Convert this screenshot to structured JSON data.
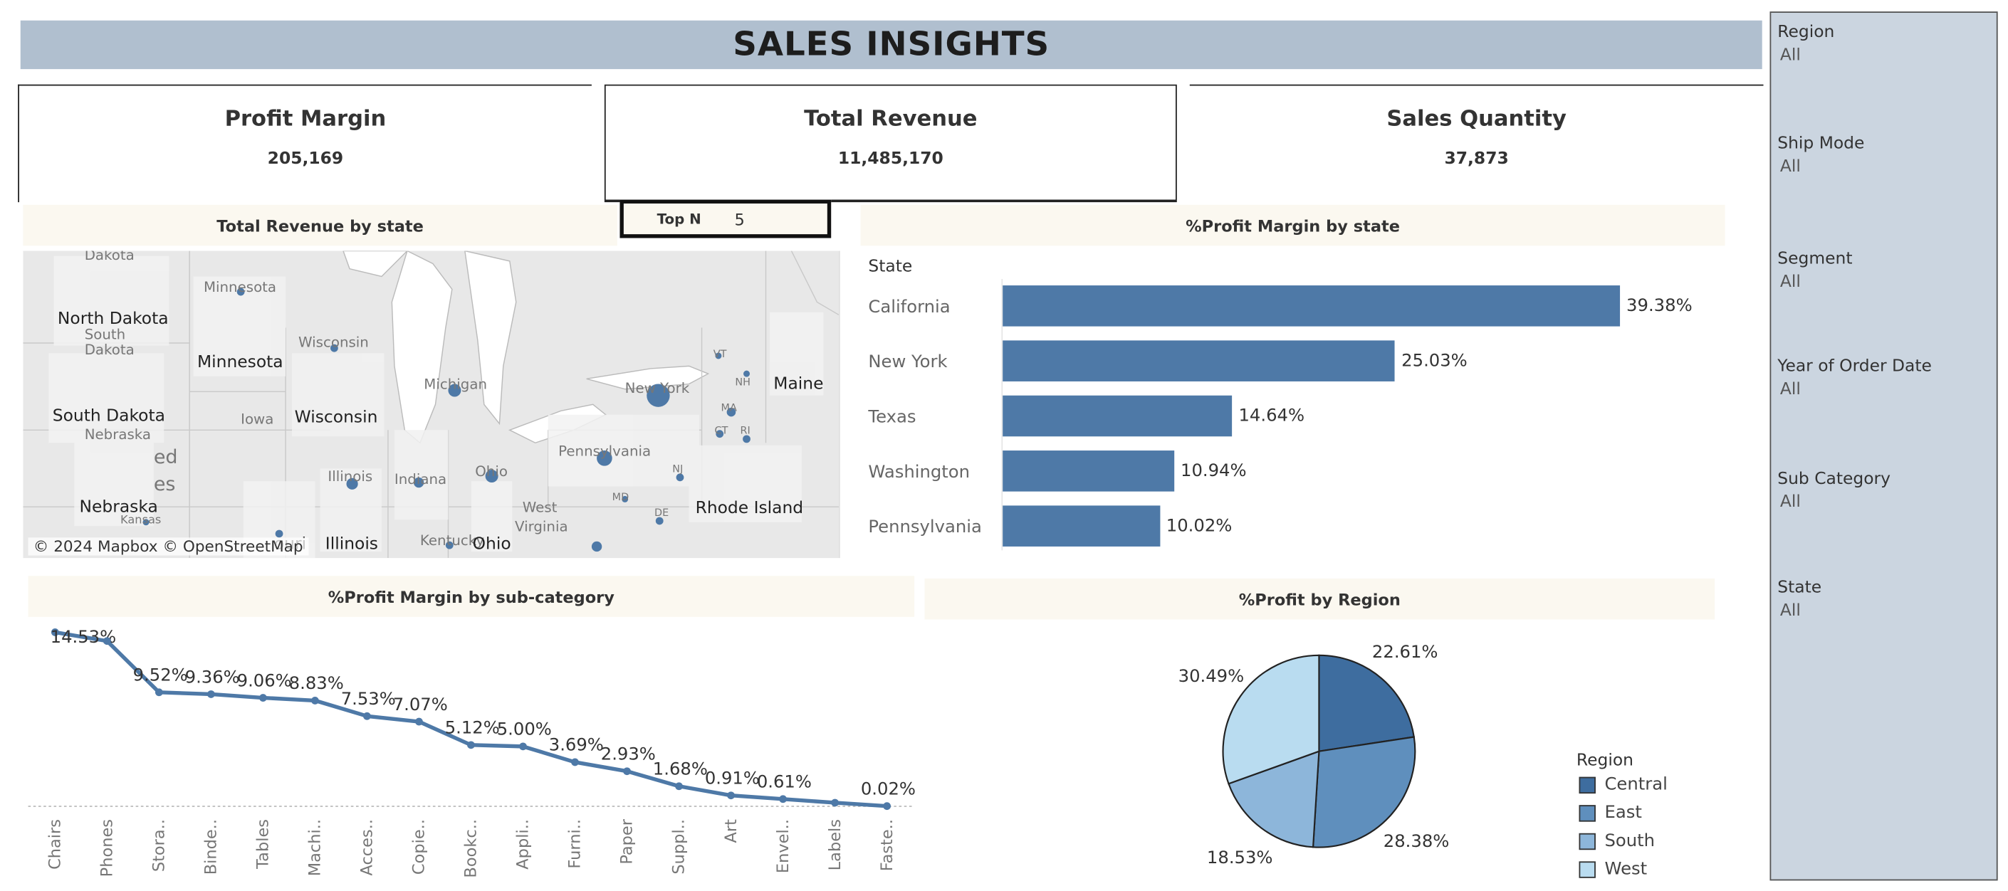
{
  "header": {
    "title": "SALES INSIGHTS"
  },
  "kpis": [
    {
      "label": "Profit Margin",
      "value": "205,169"
    },
    {
      "label": "Total Revenue",
      "value": "11,485,170"
    },
    {
      "label": "Sales Quantity",
      "value": "37,873"
    }
  ],
  "map_panel": {
    "title": "Total Revenue by state",
    "topn_label": "Top N",
    "topn_value": "5",
    "credit": "© 2024 Mapbox © OpenStreetMap",
    "labels": [
      "North Dakota",
      "Minnesota",
      "South Dakota",
      "Wisconsin",
      "Maine",
      "Rhode Island",
      "Nebraska",
      "Illinois",
      "Ohio"
    ],
    "faint_labels": [
      "Dakota",
      "Minnesota",
      "South",
      "Dakota",
      "Wisconsin",
      "Michigan",
      "New York",
      "Iowa",
      "Nebraska",
      "Pennsylvania",
      "Ohio",
      "Indiana",
      "Illinois",
      "West",
      "Virginia",
      "Kentucky",
      "ouri",
      "ed",
      "es",
      "Kansas",
      "VT",
      "NH",
      "MA",
      "CT",
      "RI",
      "MD",
      "DE",
      "NJ"
    ]
  },
  "bar_panel": {
    "title": "%Profit Margin by state",
    "header": "State"
  },
  "line_panel": {
    "title": "%Profit Margin by sub-category"
  },
  "pie_panel": {
    "title": "%Profit by Region",
    "legend_title": "Region"
  },
  "filters": [
    {
      "label": "Region",
      "value": "All"
    },
    {
      "label": "Ship Mode",
      "value": "All"
    },
    {
      "label": "Segment",
      "value": "All"
    },
    {
      "label": "Year of Order Date",
      "value": "All"
    },
    {
      "label": "Sub Category",
      "value": "All"
    },
    {
      "label": "State",
      "value": "All"
    }
  ],
  "chart_data": [
    {
      "type": "bar",
      "orientation": "horizontal",
      "categories": [
        "California",
        "New York",
        "Texas",
        "Washington",
        "Pennsylvania"
      ],
      "values": [
        39.38,
        25.03,
        14.64,
        10.94,
        10.02
      ],
      "value_labels": [
        "39.38%",
        "25.03%",
        "14.64%",
        "10.94%",
        "10.02%"
      ],
      "title": "%Profit Margin by state",
      "color": "#4e79a7"
    },
    {
      "type": "line",
      "categories": [
        "Chairs",
        "Phones",
        "Stora..",
        "Binde..",
        "Tables",
        "Machi..",
        "Acces..",
        "Copie..",
        "Bookc..",
        "Appli..",
        "Furni..",
        "Paper",
        "Suppl..",
        "Art",
        "Envel..",
        "Labels",
        "Faste.."
      ],
      "values": [
        14.53,
        13.8,
        9.52,
        9.36,
        9.06,
        8.83,
        7.53,
        7.07,
        5.12,
        5.0,
        3.69,
        2.93,
        1.68,
        0.91,
        0.61,
        0.3,
        0.02
      ],
      "value_labels": [
        "14.53%",
        "",
        "9.52%",
        "9.36%",
        "9.06%",
        "8.83%",
        "7.53%",
        "7.07%",
        "5.12%",
        "5.00%",
        "3.69%",
        "2.93%",
        "1.68%",
        "0.91%",
        "0.61%",
        "",
        "0.02%"
      ],
      "title": "%Profit Margin by sub-category",
      "color": "#4e79a7"
    },
    {
      "type": "pie",
      "categories": [
        "Central",
        "East",
        "South",
        "West"
      ],
      "values": [
        22.61,
        28.38,
        18.53,
        30.49
      ],
      "value_labels": [
        "22.61%",
        "28.38%",
        "18.53%",
        "30.49%"
      ],
      "colors": [
        "#3e6d9f",
        "#5f8fbd",
        "#8db6da",
        "#b9dcf0"
      ],
      "title": "%Profit by Region",
      "legend_title": "Region"
    }
  ]
}
